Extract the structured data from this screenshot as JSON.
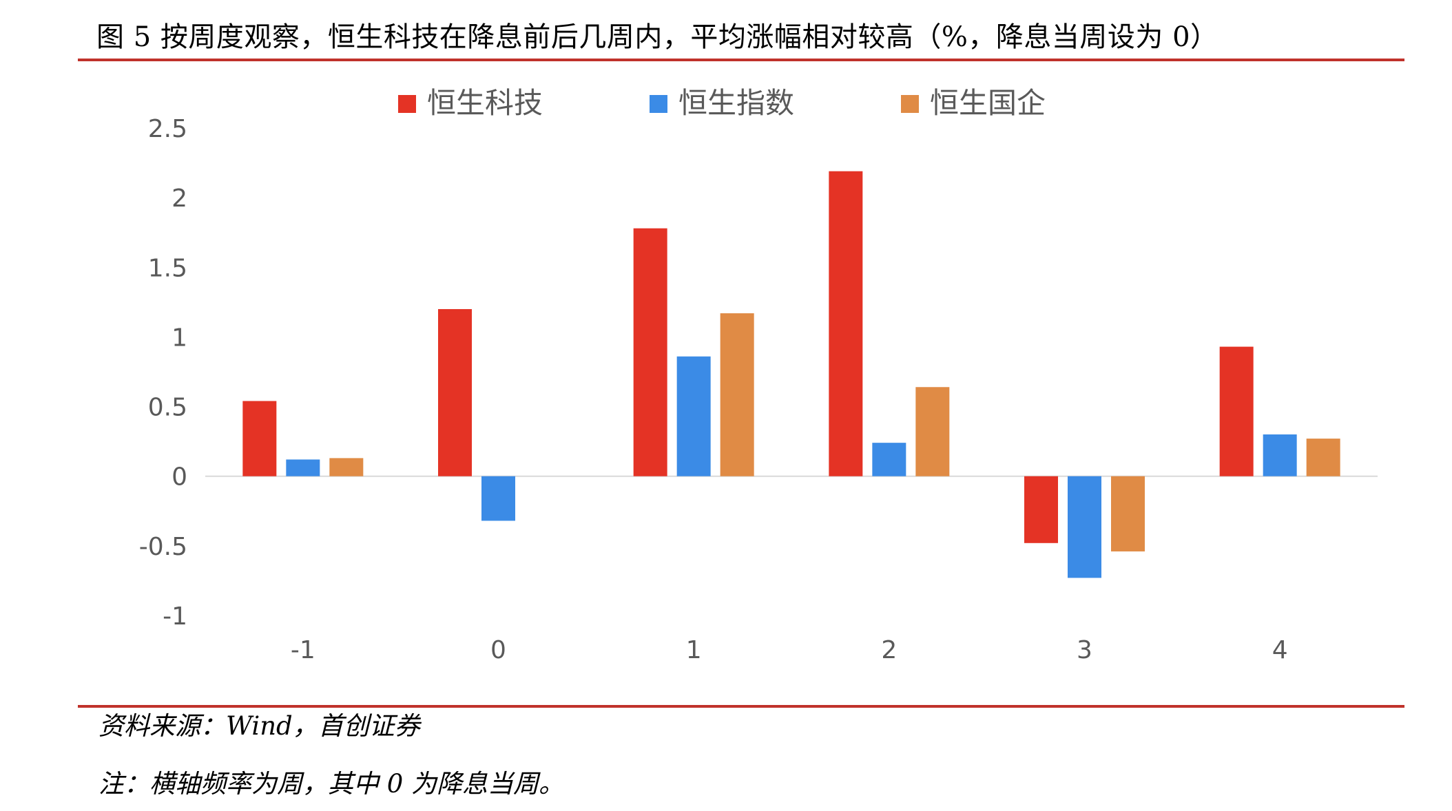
{
  "title": "图 5 按周度观察，恒生科技在降息前后几周内，平均涨幅相对较高（%，降息当周设为 0）",
  "rule_color": "#c0322b",
  "chart_data": {
    "type": "bar",
    "categories": [
      "-1",
      "0",
      "1",
      "2",
      "3",
      "4"
    ],
    "series": [
      {
        "name": "恒生科技",
        "color": "#e43325",
        "values": [
          0.54,
          1.2,
          1.78,
          2.19,
          -0.48,
          0.93
        ]
      },
      {
        "name": "恒生指数",
        "color": "#3b8be6",
        "values": [
          0.12,
          -0.32,
          0.86,
          0.24,
          -0.73,
          0.3
        ]
      },
      {
        "name": "恒生国企",
        "color": "#e08b45",
        "values": [
          0.13,
          0.0,
          1.17,
          0.64,
          -0.54,
          0.27
        ]
      }
    ],
    "ylim": [
      -1,
      2.5
    ],
    "yticks": [
      "2.5",
      "2",
      "1.5",
      "1",
      "0.5",
      "0",
      "-0.5",
      "-1"
    ],
    "legend_position": "top",
    "grid": false,
    "xlabel": "",
    "ylabel": ""
  },
  "source_note": "资料来源：Wind，首创证券",
  "footnote": "注：横轴频率为周，其中 0 为降息当周。"
}
